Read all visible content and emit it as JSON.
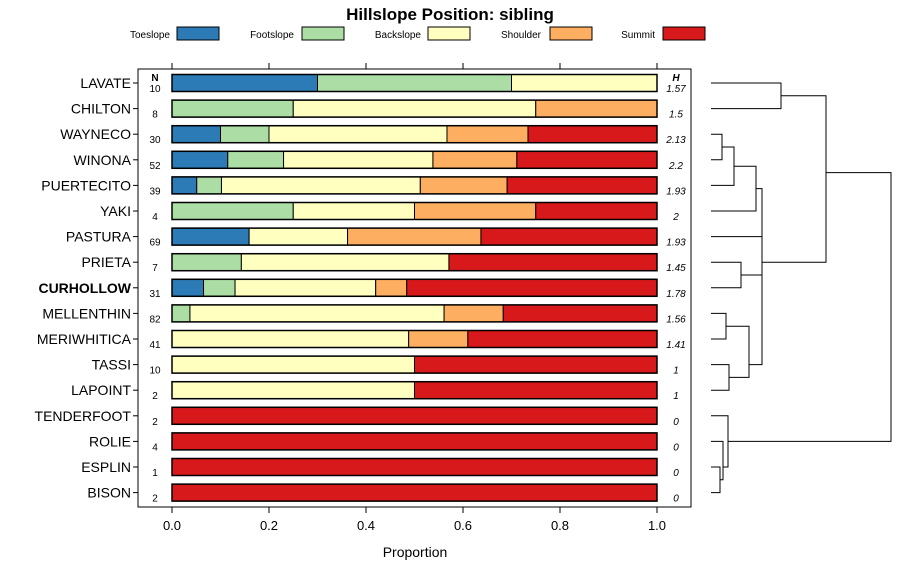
{
  "chart_data": {
    "type": "bar",
    "stacked": true,
    "orientation": "horizontal",
    "title": "Hillslope Position: sibling",
    "xlabel": "Proportion",
    "xlim": [
      0,
      1
    ],
    "xticks": [
      "0.0",
      "0.2",
      "0.4",
      "0.6",
      "0.8",
      "1.0"
    ],
    "xtick_values": [
      0,
      0.2,
      0.4,
      0.6,
      0.8,
      1.0
    ],
    "n_header": "N",
    "h_header": "H",
    "legend_position": "top",
    "series": [
      {
        "name": "Toeslope",
        "color": "#2c7bb6"
      },
      {
        "name": "Footslope",
        "color": "#abdda4"
      },
      {
        "name": "Backslope",
        "color": "#ffffbf"
      },
      {
        "name": "Shoulder",
        "color": "#fdae61"
      },
      {
        "name": "Summit",
        "color": "#d7191c"
      }
    ],
    "rows": [
      {
        "name": "LAVATE",
        "n": "10",
        "h": "1.57",
        "values": [
          0.3,
          0.4,
          0.3,
          0,
          0
        ],
        "bold": false
      },
      {
        "name": "CHILTON",
        "n": "8",
        "h": "1.5",
        "values": [
          0,
          0.25,
          0.5,
          0.25,
          0
        ],
        "bold": false
      },
      {
        "name": "WAYNECO",
        "n": "30",
        "h": "2.13",
        "values": [
          0.1,
          0.1,
          0.367,
          0.167,
          0.266
        ],
        "bold": false
      },
      {
        "name": "WINONA",
        "n": "52",
        "h": "2.2",
        "values": [
          0.115,
          0.115,
          0.308,
          0.173,
          0.289
        ],
        "bold": false
      },
      {
        "name": "PUERTECITO",
        "n": "39",
        "h": "1.93",
        "values": [
          0.051,
          0.051,
          0.41,
          0.179,
          0.309
        ],
        "bold": false
      },
      {
        "name": "YAKI",
        "n": "4",
        "h": "2",
        "values": [
          0,
          0.25,
          0.25,
          0.25,
          0.25
        ],
        "bold": false
      },
      {
        "name": "PASTURA",
        "n": "69",
        "h": "1.93",
        "values": [
          0.159,
          0,
          0.203,
          0.275,
          0.363
        ],
        "bold": false
      },
      {
        "name": "PRIETA",
        "n": "7",
        "h": "1.45",
        "values": [
          0,
          0.143,
          0.428,
          0,
          0.429
        ],
        "bold": false
      },
      {
        "name": "CURHOLLOW",
        "n": "31",
        "h": "1.78",
        "values": [
          0.065,
          0.065,
          0.29,
          0.064,
          0.516
        ],
        "bold": true
      },
      {
        "name": "MELLENTHIN",
        "n": "82",
        "h": "1.56",
        "values": [
          0,
          0.037,
          0.524,
          0.122,
          0.317
        ],
        "bold": false
      },
      {
        "name": "MERIWHITICA",
        "n": "41",
        "h": "1.41",
        "values": [
          0,
          0,
          0.488,
          0.122,
          0.39
        ],
        "bold": false
      },
      {
        "name": "TASSI",
        "n": "10",
        "h": "1",
        "values": [
          0,
          0,
          0.5,
          0,
          0.5
        ],
        "bold": false
      },
      {
        "name": "LAPOINT",
        "n": "2",
        "h": "1",
        "values": [
          0,
          0,
          0.5,
          0,
          0.5
        ],
        "bold": false
      },
      {
        "name": "TENDERFOOT",
        "n": "2",
        "h": "0",
        "values": [
          0,
          0,
          0,
          0,
          1.0
        ],
        "bold": false
      },
      {
        "name": "ROLIE",
        "n": "4",
        "h": "0",
        "values": [
          0,
          0,
          0,
          0,
          1.0
        ],
        "bold": false
      },
      {
        "name": "ESPLIN",
        "n": "1",
        "h": "0",
        "values": [
          0,
          0,
          0,
          0,
          1.0
        ],
        "bold": false
      },
      {
        "name": "BISON",
        "n": "2",
        "h": "0",
        "values": [
          0,
          0,
          0,
          0,
          1.0
        ],
        "bold": false
      }
    ]
  }
}
